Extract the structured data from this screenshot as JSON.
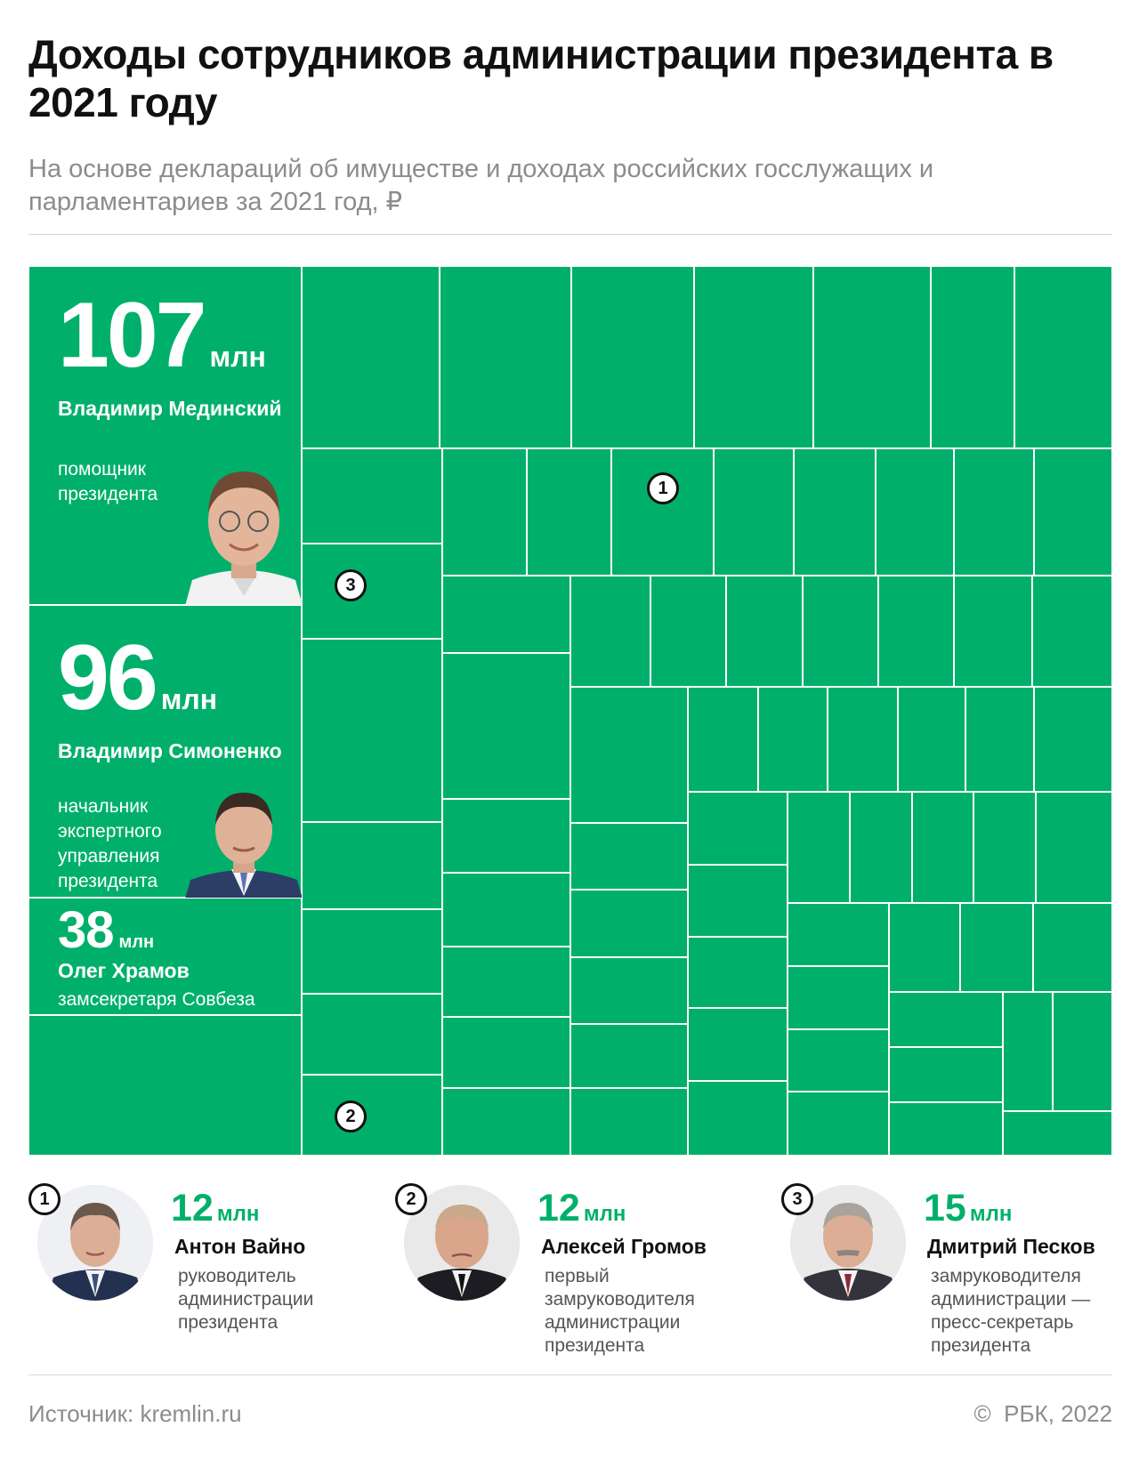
{
  "title": "Доходы сотрудников администрации президента в 2021 году",
  "subtitle": "На основе деклараций об имуществе и доходах российских госслужащих и парламентариев за 2021 год, ₽",
  "chart_data": {
    "type": "treemap",
    "unit": "млн",
    "highlighted": [
      {
        "value": "107",
        "unit": "млн",
        "name": "Владимир Мединский",
        "role": "помощник президента"
      },
      {
        "value": "96",
        "unit": "млн",
        "name": "Владимир Симоненко",
        "role": "начальник экспертного управления президента"
      },
      {
        "value": "38",
        "unit": "млн",
        "name": "Олег Храмов",
        "role": "замсекретаря Совбеза"
      }
    ],
    "markers": [
      "1",
      "3",
      "2"
    ],
    "callouts": [
      {
        "marker": "1",
        "value": "12",
        "unit": "млн",
        "name": "Антон Вайно",
        "role": "руководитель администрации президента"
      },
      {
        "marker": "2",
        "value": "12",
        "unit": "млн",
        "name": "Алексей Громов",
        "role": "первый замруководителя администрации президента"
      },
      {
        "marker": "3",
        "value": "15",
        "unit": "млн",
        "name": "Дмитрий Песков",
        "role": "замруководителя администрации — пресс-секретарь президента"
      }
    ]
  },
  "colors": {
    "accent": "#00b06a",
    "text": "#111111",
    "muted": "#8c8c8c"
  },
  "footer": {
    "source": "Источник: kremlin.ru",
    "copyright": "©  РБК, 2022"
  }
}
